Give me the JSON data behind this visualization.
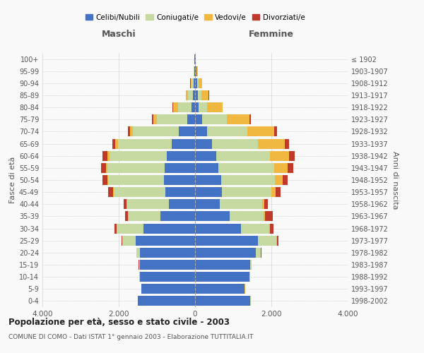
{
  "age_groups": [
    "0-4",
    "5-9",
    "10-14",
    "15-19",
    "20-24",
    "25-29",
    "30-34",
    "35-39",
    "40-44",
    "45-49",
    "50-54",
    "55-59",
    "60-64",
    "65-69",
    "70-74",
    "75-79",
    "80-84",
    "85-89",
    "90-94",
    "95-99",
    "100+"
  ],
  "birth_years": [
    "1998-2002",
    "1993-1997",
    "1988-1992",
    "1983-1987",
    "1978-1982",
    "1973-1977",
    "1968-1972",
    "1963-1967",
    "1958-1962",
    "1953-1957",
    "1948-1952",
    "1943-1947",
    "1938-1942",
    "1933-1937",
    "1928-1932",
    "1923-1927",
    "1918-1922",
    "1913-1917",
    "1908-1912",
    "1903-1907",
    "≤ 1902"
  ],
  "males": {
    "celibi": [
      1500,
      1400,
      1450,
      1450,
      1450,
      1550,
      1350,
      900,
      680,
      780,
      820,
      800,
      750,
      620,
      430,
      200,
      100,
      60,
      40,
      20,
      10
    ],
    "coniugati": [
      5,
      5,
      10,
      20,
      80,
      350,
      700,
      850,
      1100,
      1350,
      1450,
      1500,
      1500,
      1400,
      1200,
      800,
      350,
      120,
      50,
      15,
      5
    ],
    "vedovi": [
      2,
      2,
      2,
      2,
      2,
      5,
      5,
      5,
      10,
      20,
      30,
      40,
      50,
      70,
      80,
      100,
      130,
      60,
      30,
      10,
      2
    ],
    "divorziati": [
      2,
      2,
      2,
      5,
      10,
      30,
      60,
      80,
      80,
      120,
      130,
      130,
      120,
      80,
      50,
      30,
      10,
      5,
      2,
      0,
      0
    ]
  },
  "females": {
    "nubili": [
      1450,
      1300,
      1430,
      1450,
      1600,
      1650,
      1200,
      900,
      650,
      700,
      680,
      620,
      560,
      450,
      320,
      180,
      100,
      80,
      60,
      30,
      12
    ],
    "coniugate": [
      5,
      5,
      10,
      30,
      120,
      480,
      750,
      900,
      1100,
      1300,
      1420,
      1450,
      1400,
      1200,
      1050,
      650,
      220,
      80,
      30,
      10,
      3
    ],
    "vedove": [
      2,
      2,
      2,
      2,
      5,
      10,
      20,
      40,
      60,
      120,
      200,
      350,
      500,
      700,
      700,
      600,
      400,
      200,
      100,
      30,
      5
    ],
    "divorziate": [
      2,
      2,
      2,
      5,
      15,
      40,
      80,
      200,
      100,
      120,
      130,
      150,
      160,
      120,
      80,
      30,
      10,
      5,
      3,
      0,
      0
    ]
  },
  "colors": {
    "celibi": "#4472c4",
    "coniugati": "#c5d9a0",
    "vedovi": "#f0b840",
    "divorziati": "#c0392b"
  },
  "title": "Popolazione per età, sesso e stato civile - 2003",
  "subtitle": "COMUNE DI COMO - Dati ISTAT 1° gennaio 2003 - Elaborazione TUTTITALIA.IT",
  "xlabel_left": "Maschi",
  "xlabel_right": "Femmine",
  "ylabel_left": "Fasce di età",
  "ylabel_right": "Anni di nascita",
  "xlim": 4000,
  "legend_labels": [
    "Celibi/Nubili",
    "Coniugati/e",
    "Vedovi/e",
    "Divorziati/e"
  ],
  "bg_color": "#f9f9f9",
  "grid_color": "#cccccc"
}
